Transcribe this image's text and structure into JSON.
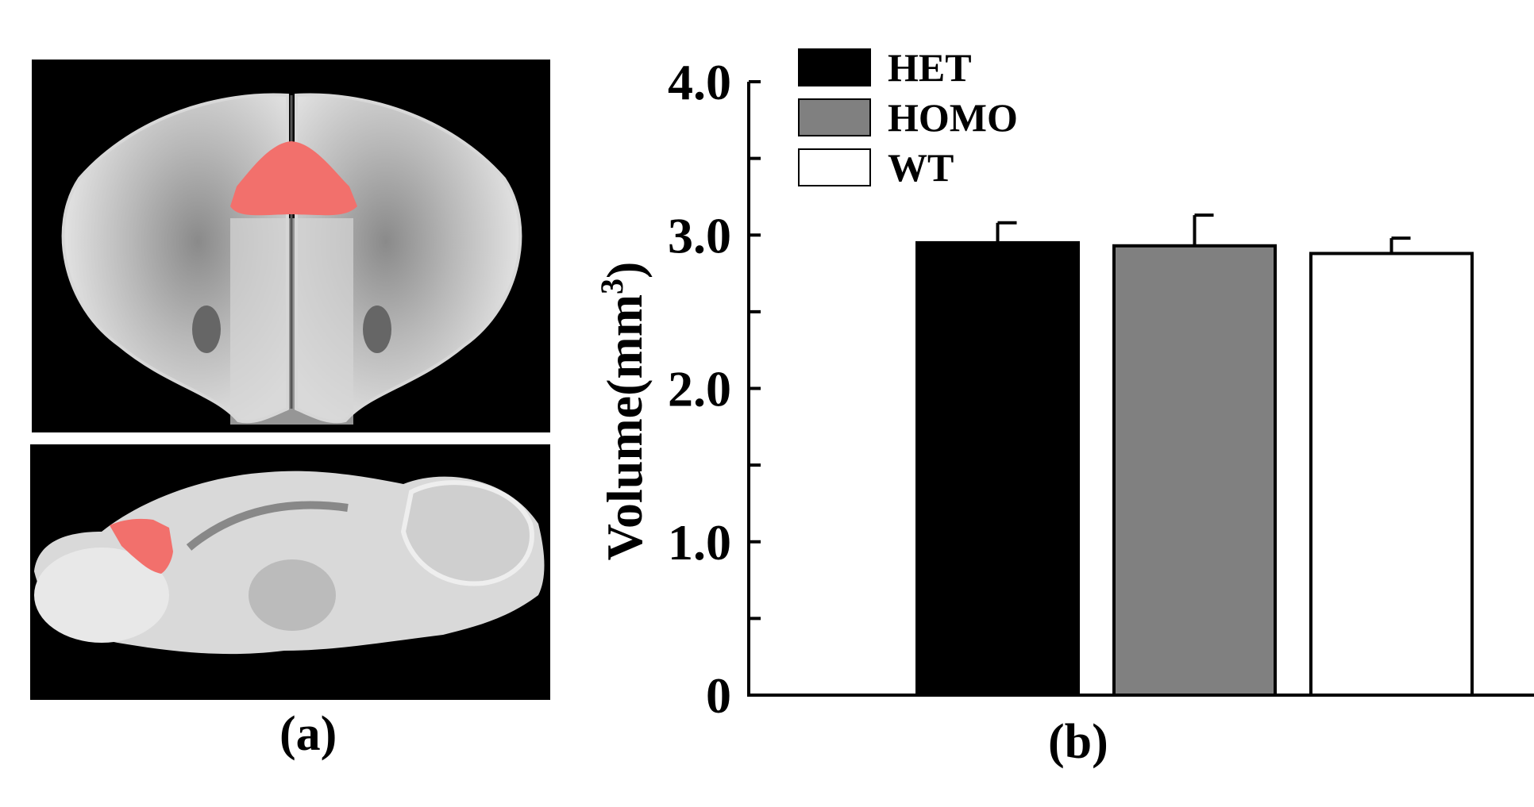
{
  "panels": {
    "a_label": "(a)",
    "b_label": "(b)"
  },
  "colors": {
    "highlight": "#f2706c",
    "background": "#000000"
  },
  "chart_data": {
    "type": "bar",
    "categories": [
      "HET",
      "HOMO",
      "WT"
    ],
    "values": [
      2.95,
      2.93,
      2.88
    ],
    "errors": [
      0.13,
      0.2,
      0.1
    ],
    "colors": [
      "#000000",
      "#808080",
      "#ffffff"
    ],
    "legend": [
      "HET",
      "HOMO",
      "WT"
    ],
    "legend_position": "top-left",
    "ylabel": "Volume(mm",
    "ylabel_sup": "3",
    "ylabel_close": ")",
    "ylim": [
      0,
      4.0
    ],
    "yticks": [
      0,
      1.0,
      2.0,
      3.0,
      4.0
    ],
    "ytick_labels": [
      "0",
      "1.0",
      "2.0",
      "3.0",
      "4.0"
    ],
    "minor_yticks": [
      0.5,
      1.5,
      2.5,
      3.5
    ]
  }
}
